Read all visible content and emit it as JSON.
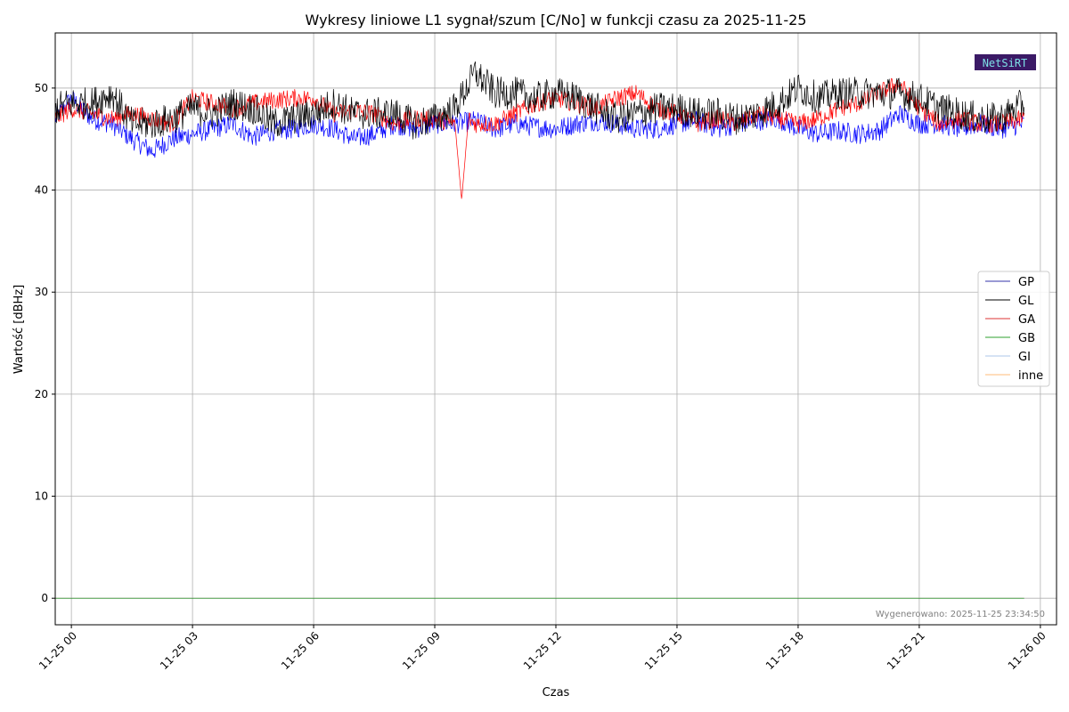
{
  "chart_data": {
    "type": "line",
    "title": "Wykresy liniowe L1 sygnał/szum [C/No] w funkcji czasu za 2025-11-25",
    "xlabel": "Czas",
    "ylabel": "Wartość [dBHz]",
    "x_range": [
      "2025-11-24 23:36",
      "2025-11-26 00:24"
    ],
    "ylim": [
      -2.6,
      55.4
    ],
    "x_ticks": [
      {
        "label": "11-25 00",
        "hour": 24
      },
      {
        "label": "11-25 03",
        "hour": 27
      },
      {
        "label": "11-25 06",
        "hour": 30
      },
      {
        "label": "11-25 09",
        "hour": 33
      },
      {
        "label": "11-25 12",
        "hour": 36
      },
      {
        "label": "11-25 15",
        "hour": 39
      },
      {
        "label": "11-25 18",
        "hour": 42
      },
      {
        "label": "11-25 21",
        "hour": 45
      },
      {
        "label": "11-26 00",
        "hour": 48
      }
    ],
    "y_ticks": [
      0,
      10,
      20,
      30,
      40,
      50
    ],
    "grid": true,
    "legend_position": "right",
    "series": [
      {
        "name": "GP",
        "color": "#0000ff",
        "legend_color": "#3333aa",
        "x": [
          "2025-11-24 23:36",
          "2025-11-25 00:00",
          "2025-11-25 00:30",
          "2025-11-25 01:00",
          "2025-11-25 01:30",
          "2025-11-25 02:00",
          "2025-11-25 02:30",
          "2025-11-25 03:00",
          "2025-11-25 03:30",
          "2025-11-25 04:00",
          "2025-11-25 04:30",
          "2025-11-25 05:00",
          "2025-11-25 05:30",
          "2025-11-25 06:00",
          "2025-11-25 06:30",
          "2025-11-25 07:00",
          "2025-11-25 07:30",
          "2025-11-25 08:00",
          "2025-11-25 08:30",
          "2025-11-25 09:00",
          "2025-11-25 09:30",
          "2025-11-25 10:00",
          "2025-11-25 10:30",
          "2025-11-25 11:00",
          "2025-11-25 11:30",
          "2025-11-25 12:00",
          "2025-11-25 12:30",
          "2025-11-25 13:00",
          "2025-11-25 13:30",
          "2025-11-25 14:00",
          "2025-11-25 14:30",
          "2025-11-25 15:00",
          "2025-11-25 15:30",
          "2025-11-25 16:00",
          "2025-11-25 16:30",
          "2025-11-25 17:00",
          "2025-11-25 17:30",
          "2025-11-25 18:00",
          "2025-11-25 18:30",
          "2025-11-25 19:00",
          "2025-11-25 19:30",
          "2025-11-25 20:00",
          "2025-11-25 20:30",
          "2025-11-25 21:00",
          "2025-11-25 21:30",
          "2025-11-25 22:00",
          "2025-11-25 22:30",
          "2025-11-25 23:00",
          "2025-11-25 23:36"
        ],
        "values": [
          47.0,
          49.0,
          47.0,
          46.5,
          45.0,
          43.8,
          45.0,
          45.5,
          46.0,
          46.5,
          45.2,
          45.8,
          46.0,
          46.5,
          46.0,
          45.0,
          45.5,
          46.5,
          46.0,
          46.5,
          46.5,
          46.8,
          46.0,
          46.5,
          46.2,
          46.0,
          46.5,
          46.8,
          46.5,
          46.0,
          46.0,
          46.5,
          46.8,
          46.0,
          46.5,
          46.8,
          47.0,
          46.0,
          45.5,
          45.8,
          45.5,
          45.8,
          47.5,
          46.5,
          46.5,
          46.0,
          46.5,
          46.0,
          46.5
        ]
      },
      {
        "name": "GL",
        "color": "#000000",
        "legend_color": "#000000",
        "x": [
          "2025-11-24 23:36",
          "2025-11-25 00:00",
          "2025-11-25 00:30",
          "2025-11-25 01:00",
          "2025-11-25 01:30",
          "2025-11-25 02:00",
          "2025-11-25 02:30",
          "2025-11-25 03:00",
          "2025-11-25 03:30",
          "2025-11-25 04:00",
          "2025-11-25 04:30",
          "2025-11-25 05:00",
          "2025-11-25 05:30",
          "2025-11-25 06:00",
          "2025-11-25 06:30",
          "2025-11-25 07:00",
          "2025-11-25 07:30",
          "2025-11-25 08:00",
          "2025-11-25 08:30",
          "2025-11-25 09:00",
          "2025-11-25 09:30",
          "2025-11-25 10:00",
          "2025-11-25 10:30",
          "2025-11-25 11:00",
          "2025-11-25 11:30",
          "2025-11-25 12:00",
          "2025-11-25 12:30",
          "2025-11-25 13:00",
          "2025-11-25 13:30",
          "2025-11-25 14:00",
          "2025-11-25 14:30",
          "2025-11-25 15:00",
          "2025-11-25 15:30",
          "2025-11-25 16:00",
          "2025-11-25 16:30",
          "2025-11-25 17:00",
          "2025-11-25 17:30",
          "2025-11-25 18:00",
          "2025-11-25 18:30",
          "2025-11-25 19:00",
          "2025-11-25 19:30",
          "2025-11-25 20:00",
          "2025-11-25 20:30",
          "2025-11-25 21:00",
          "2025-11-25 21:30",
          "2025-11-25 22:00",
          "2025-11-25 22:30",
          "2025-11-25 23:00",
          "2025-11-25 23:36"
        ],
        "values": [
          48.0,
          48.5,
          48.5,
          49.5,
          46.5,
          46.5,
          47.0,
          48.0,
          47.5,
          48.5,
          48.0,
          46.5,
          47.0,
          47.5,
          48.5,
          47.5,
          47.5,
          47.5,
          46.5,
          47.0,
          48.0,
          51.5,
          49.5,
          49.5,
          49.0,
          49.5,
          49.0,
          48.0,
          47.0,
          47.5,
          48.0,
          48.0,
          47.5,
          47.5,
          47.0,
          47.5,
          48.5,
          50.0,
          49.0,
          49.5,
          49.5,
          49.5,
          49.5,
          49.0,
          48.0,
          47.5,
          47.0,
          47.0,
          48.5
        ]
      },
      {
        "name": "GA",
        "color": "#ff0000",
        "legend_color": "#dd3333",
        "x": [
          "2025-11-24 23:36",
          "2025-11-25 00:00",
          "2025-11-25 00:30",
          "2025-11-25 01:00",
          "2025-11-25 01:30",
          "2025-11-25 02:00",
          "2025-11-25 02:30",
          "2025-11-25 03:00",
          "2025-11-25 03:30",
          "2025-11-25 04:00",
          "2025-11-25 04:30",
          "2025-11-25 05:00",
          "2025-11-25 05:30",
          "2025-11-25 06:00",
          "2025-11-25 06:30",
          "2025-11-25 07:00",
          "2025-11-25 07:30",
          "2025-11-25 08:00",
          "2025-11-25 08:30",
          "2025-11-25 09:00",
          "2025-11-25 09:30",
          "2025-11-25 09:40",
          "2025-11-25 09:50",
          "2025-11-25 10:00",
          "2025-11-25 10:30",
          "2025-11-25 11:00",
          "2025-11-25 11:30",
          "2025-11-25 12:00",
          "2025-11-25 12:30",
          "2025-11-25 13:00",
          "2025-11-25 13:30",
          "2025-11-25 14:00",
          "2025-11-25 14:30",
          "2025-11-25 15:00",
          "2025-11-25 15:30",
          "2025-11-25 16:00",
          "2025-11-25 16:30",
          "2025-11-25 17:00",
          "2025-11-25 17:30",
          "2025-11-25 18:00",
          "2025-11-25 18:30",
          "2025-11-25 19:00",
          "2025-11-25 19:30",
          "2025-11-25 20:00",
          "2025-11-25 20:30",
          "2025-11-25 21:00",
          "2025-11-25 21:30",
          "2025-11-25 22:00",
          "2025-11-25 22:30",
          "2025-11-25 23:00",
          "2025-11-25 23:36"
        ],
        "values": [
          47.0,
          48.0,
          47.5,
          47.0,
          47.5,
          47.0,
          46.5,
          49.0,
          48.5,
          48.0,
          48.5,
          48.8,
          49.0,
          49.0,
          47.5,
          47.8,
          47.5,
          46.5,
          47.0,
          47.0,
          46.5,
          39.0,
          47.0,
          46.5,
          46.5,
          47.5,
          48.5,
          49.0,
          48.5,
          48.0,
          49.0,
          49.5,
          48.0,
          47.5,
          46.5,
          47.0,
          46.5,
          47.5,
          47.0,
          46.5,
          47.0,
          48.0,
          48.5,
          49.5,
          50.5,
          48.0,
          46.5,
          47.0,
          46.5,
          46.5,
          47.0
        ]
      },
      {
        "name": "GB",
        "color": "#008000",
        "legend_color": "#2ca02c",
        "x": [
          "2025-11-24 23:36",
          "2025-11-25 23:36"
        ],
        "values": [
          0,
          0
        ]
      },
      {
        "name": "GI",
        "color": "#aec7e8",
        "legend_color": "#aec7e8",
        "x": [
          "2025-11-24 23:36",
          "2025-11-25 23:36"
        ],
        "values": [
          0,
          0
        ]
      },
      {
        "name": "inne",
        "color": "#ffbb78",
        "legend_color": "#ffbb78",
        "x": [
          "2025-11-24 23:36",
          "2025-11-25 23:36"
        ],
        "values": [
          0,
          0
        ]
      }
    ],
    "annotation": "Wygenerowano: 2025-11-25 23:34:50",
    "logo_text": "NetSiRT"
  }
}
